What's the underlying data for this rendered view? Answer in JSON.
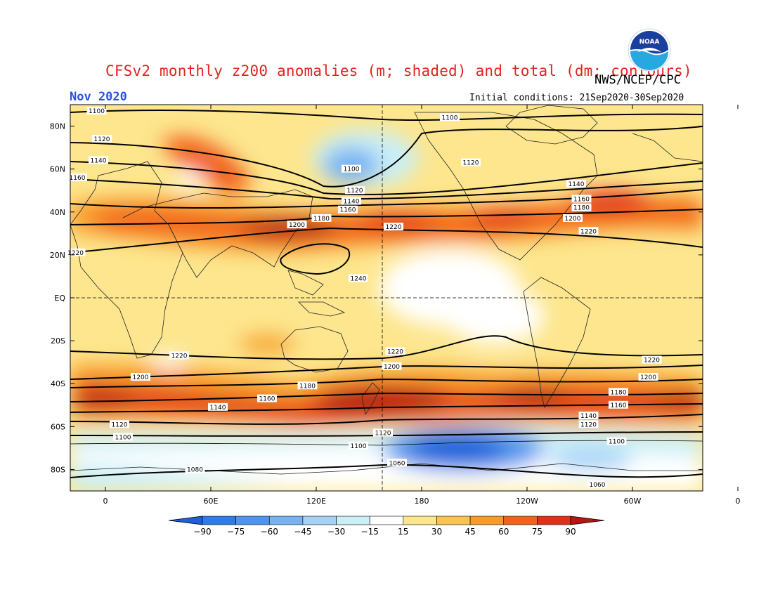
{
  "title": "CFSv2 monthly z200 anomalies (m; shaded) and total (dm; contours)",
  "agency": "NWS/NCEP/CPC",
  "logo_text": "NOAA",
  "valid_month": "Nov 2020",
  "initial_conditions": "Initial conditions: 21Sep2020-30Sep2020",
  "lat_labels": [
    "80N",
    "60N",
    "40N",
    "20N",
    "EQ",
    "20S",
    "40S",
    "60S",
    "80S"
  ],
  "lon_labels": [
    "0",
    "60E",
    "120E",
    "180",
    "120W",
    "60W",
    "0"
  ],
  "colorbar": {
    "levels": [
      -90,
      -75,
      -60,
      -45,
      -30,
      -15,
      15,
      30,
      45,
      60,
      75,
      90
    ],
    "labels": [
      "-90",
      "-75",
      "-60",
      "-45",
      "-30",
      "-15",
      "15",
      "30",
      "45",
      "60",
      "75",
      "90"
    ],
    "colors": [
      "#1f5fd8",
      "#2f7be8",
      "#4d95ee",
      "#78b2f2",
      "#a6d2f7",
      "#c9eff8",
      "#ffffff",
      "#fde68e",
      "#fbc352",
      "#f89b2a",
      "#f2621c",
      "#e0301a",
      "#b81414"
    ]
  },
  "contour_labels": [
    {
      "text": "1100",
      "lon": -5,
      "lat": 87
    },
    {
      "text": "1100",
      "lon": 196,
      "lat": 84
    },
    {
      "text": "1120",
      "lon": -2,
      "lat": 74
    },
    {
      "text": "1120",
      "lon": 208,
      "lat": 63
    },
    {
      "text": "1140",
      "lon": -4,
      "lat": 64
    },
    {
      "text": "1160",
      "lon": -16,
      "lat": 56
    },
    {
      "text": "1100",
      "lon": 140,
      "lat": 60
    },
    {
      "text": "1120",
      "lon": 142,
      "lat": 50
    },
    {
      "text": "1140",
      "lon": 140,
      "lat": 45
    },
    {
      "text": "1160",
      "lon": 138,
      "lat": 41
    },
    {
      "text": "1180",
      "lon": 123,
      "lat": 37
    },
    {
      "text": "1200",
      "lon": 109,
      "lat": 34
    },
    {
      "text": "1220",
      "lon": 164,
      "lat": 33
    },
    {
      "text": "1220",
      "lon": -17,
      "lat": 21
    },
    {
      "text": "1240",
      "lon": 144,
      "lat": 9
    },
    {
      "text": "1140",
      "lon": 268,
      "lat": 53
    },
    {
      "text": "1160",
      "lon": 271,
      "lat": 46
    },
    {
      "text": "1180",
      "lon": 271,
      "lat": 42
    },
    {
      "text": "1200",
      "lon": 266,
      "lat": 37
    },
    {
      "text": "1220",
      "lon": 275,
      "lat": 31
    },
    {
      "text": "1220",
      "lon": 165,
      "lat": -25
    },
    {
      "text": "1200",
      "lon": 163,
      "lat": -32
    },
    {
      "text": "1220",
      "lon": 311,
      "lat": -29
    },
    {
      "text": "1220",
      "lon": 42,
      "lat": -27
    },
    {
      "text": "1200",
      "lon": 20,
      "lat": -37
    },
    {
      "text": "1200",
      "lon": 309,
      "lat": -37
    },
    {
      "text": "1180",
      "lon": 115,
      "lat": -41
    },
    {
      "text": "1180",
      "lon": 292,
      "lat": -44
    },
    {
      "text": "1160",
      "lon": 92,
      "lat": -47
    },
    {
      "text": "1160",
      "lon": 292,
      "lat": -50
    },
    {
      "text": "1140",
      "lon": 64,
      "lat": -51
    },
    {
      "text": "1140",
      "lon": 275,
      "lat": -55
    },
    {
      "text": "1120",
      "lon": 8,
      "lat": -59
    },
    {
      "text": "1120",
      "lon": 158,
      "lat": -63
    },
    {
      "text": "1120",
      "lon": 275,
      "lat": -59
    },
    {
      "text": "1100",
      "lon": 10,
      "lat": -65
    },
    {
      "text": "1100",
      "lon": 144,
      "lat": -69
    },
    {
      "text": "1100",
      "lon": 291,
      "lat": -67
    },
    {
      "text": "1080",
      "lon": 51,
      "lat": -80
    },
    {
      "text": "1060",
      "lon": 166,
      "lat": -77
    },
    {
      "text": "1060",
      "lon": 280,
      "lat": -87
    }
  ]
}
